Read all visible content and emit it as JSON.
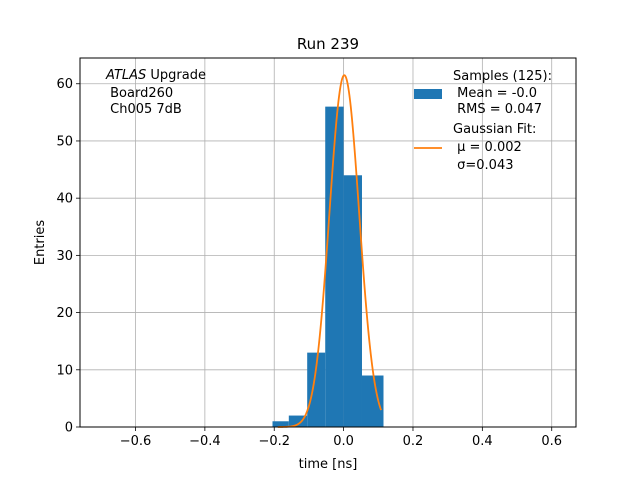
{
  "chart_data": {
    "type": "bar",
    "title": "Run 239",
    "xlabel": "time [ns]",
    "ylabel": "Entries",
    "xlim": [
      -0.76,
      0.67
    ],
    "ylim": [
      0,
      64.5
    ],
    "xticks": [
      -0.6,
      -0.4,
      -0.2,
      0.0,
      0.2,
      0.4,
      0.6
    ],
    "xtick_labels": [
      "−0.6",
      "−0.4",
      "−0.2",
      "0.0",
      "0.2",
      "0.4",
      "0.6"
    ],
    "yticks": [
      0,
      10,
      20,
      30,
      40,
      50,
      60
    ],
    "ytick_labels": [
      "0",
      "10",
      "20",
      "30",
      "40",
      "50",
      "60"
    ],
    "grid": true,
    "legend_position": "top-right",
    "annotation": {
      "italic_part": "ATLAS",
      "line1_rest": " Upgrade",
      "line2": " Board260",
      "line3": " Ch005 7dB"
    },
    "series": [
      {
        "name": "Samples (125):",
        "type": "histogram",
        "color": "#1f77b4",
        "bins": [
          {
            "left": -0.205,
            "right": -0.158,
            "count": 1
          },
          {
            "left": -0.158,
            "right": -0.105,
            "count": 2
          },
          {
            "left": -0.105,
            "right": -0.053,
            "count": 13
          },
          {
            "left": -0.053,
            "right": 0.0,
            "count": 56
          },
          {
            "left": 0.0,
            "right": 0.053,
            "count": 44
          },
          {
            "left": 0.053,
            "right": 0.115,
            "count": 9
          }
        ],
        "legend_lines": [
          "Samples (125):",
          " Mean = -0.0",
          " RMS = 0.047"
        ]
      },
      {
        "name": "Gaussian Fit:",
        "type": "line",
        "color": "#ff7f0e",
        "mu": 0.002,
        "sigma": 0.043,
        "amplitude": 61.5,
        "x_range": [
          -0.19,
          0.108
        ],
        "legend_lines": [
          "Gaussian Fit:",
          " μ = 0.002",
          " σ=0.043"
        ]
      }
    ]
  }
}
